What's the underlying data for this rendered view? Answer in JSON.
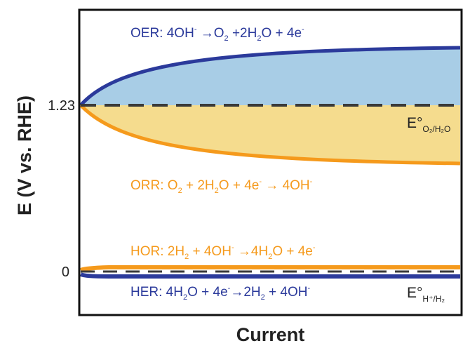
{
  "chart_data": {
    "type": "line",
    "title": "",
    "xlabel": "Current",
    "ylabel": "E (V vs. RHE)",
    "y_ticks": [
      "1.23",
      "0"
    ],
    "y_tick_values": [
      1.23,
      0
    ],
    "reference_lines": [
      {
        "value": 1.23,
        "label": "E°",
        "subscript": "O₂/H₂O",
        "style": "dashed"
      },
      {
        "value": 0,
        "label": "E°",
        "subscript": "H⁺/H₂",
        "style": "dashed"
      }
    ],
    "series": [
      {
        "name": "OER",
        "color": "#2b3a9b",
        "fill": "#a8cde6"
      },
      {
        "name": "ORR",
        "color": "#f59a1c",
        "fill": "#f5dc8e"
      },
      {
        "name": "HOR",
        "color": "#f59a1c"
      },
      {
        "name": "HER",
        "color": "#2b3a9b"
      }
    ],
    "annotations": {
      "oer": {
        "prefix": "OER: 4OH",
        "sup1": "-",
        "arrow": " →O",
        "sub1": "2",
        "mid": " +2H",
        "sub2": "2",
        "end": "O + 4e",
        "sup2": "-"
      },
      "orr": {
        "prefix": "ORR: O",
        "sub1": "2",
        "mid": " + 2H",
        "sub2": "2",
        "mid2": "O + 4e",
        "sup1": "-",
        "end": " → 4OH",
        "sup2": "-"
      },
      "hor": {
        "prefix": "HOR: 2H",
        "sub1": "2",
        "mid": " + 4OH",
        "sup1": "-",
        "arrow": " →4H",
        "sub2": "2",
        "end": "O + 4e",
        "sup2": "-"
      },
      "her": {
        "prefix": "HER: 4H",
        "sub1": "2",
        "mid": "O + 4e",
        "sup1": "-",
        "arrow": "→2H",
        "sub2": "2",
        "end": " + 4OH",
        "sup2": "-"
      }
    },
    "grid": false,
    "legend": "none"
  }
}
